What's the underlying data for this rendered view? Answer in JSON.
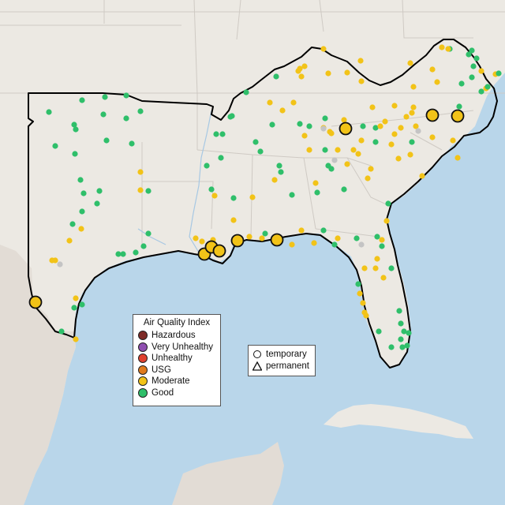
{
  "aqi_legend": {
    "title": "Air Quality Index",
    "items": [
      {
        "label": "Hazardous",
        "color": "#7e2b27"
      },
      {
        "label": "Very Unhealthy",
        "color": "#8f4fb0"
      },
      {
        "label": "Unhealthy",
        "color": "#e0412f"
      },
      {
        "label": "USG",
        "color": "#e07b1c"
      },
      {
        "label": "Moderate",
        "color": "#f2c318"
      },
      {
        "label": "Good",
        "color": "#2fbf6a"
      }
    ]
  },
  "type_legend": {
    "items": [
      {
        "label": "temporary",
        "symbol": "circle"
      },
      {
        "label": "permanent",
        "symbol": "triangle"
      }
    ]
  },
  "colors": {
    "ocean": "#b9d6ea",
    "land": "#ece9e3",
    "mexico_land": "#e2dcd5",
    "no_data": "#c4c4c4"
  }
}
